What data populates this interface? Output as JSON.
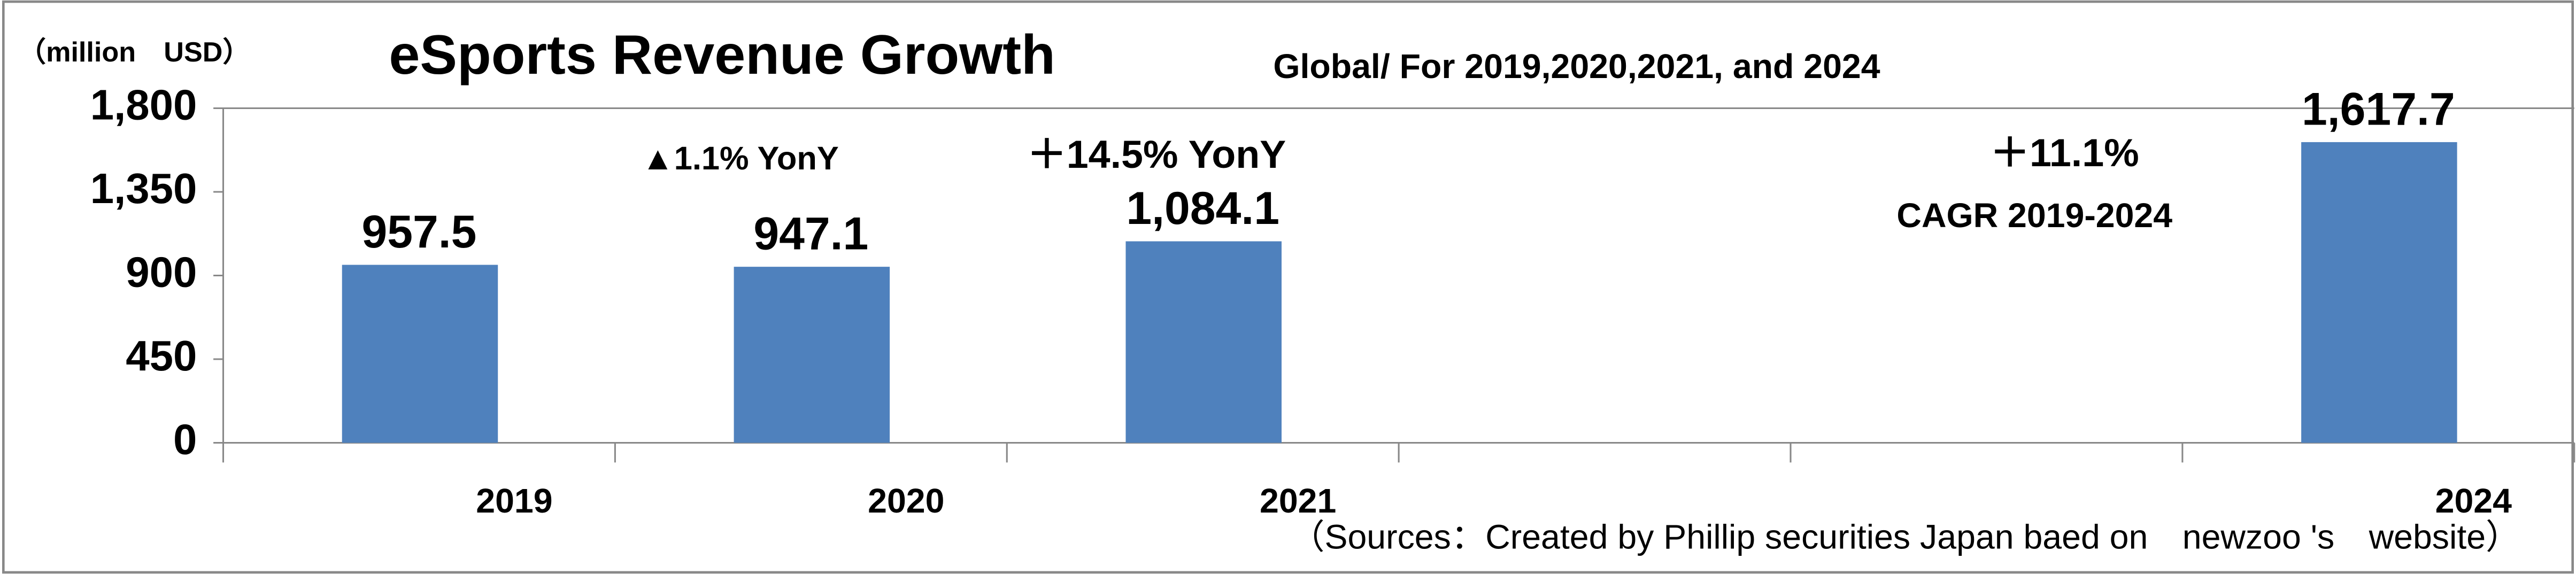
{
  "chart_data": {
    "type": "bar",
    "title": "eSports Revenue Growth",
    "subtitle": "Global/ For 2019,2020,2021, and 2024",
    "y_axis_label": "（million　USD）",
    "source": "（Sources：Created by Phillip securities Japan baed on　newzoo 's　website）",
    "annotations": [
      "▲1.1% YonY",
      "＋14.5% YonY",
      "＋11.1%",
      "CAGR 2019-2024"
    ],
    "categories": [
      "2019",
      "2020",
      "2021",
      null,
      null,
      "2024"
    ],
    "values": [
      957.5,
      947.1,
      1084.1,
      null,
      null,
      1617.7
    ],
    "value_labels": [
      "957.5",
      "947.1",
      "1,084.1",
      null,
      null,
      "1,617.7"
    ],
    "color": "#4f81bd",
    "ylim": [
      0,
      1800
    ],
    "yticks": [
      0,
      450,
      900,
      {
        "value": 1350,
        "label": "1,350"
      },
      {
        "value": 1800,
        "label": "1,800"
      }
    ],
    "grid": false
  }
}
